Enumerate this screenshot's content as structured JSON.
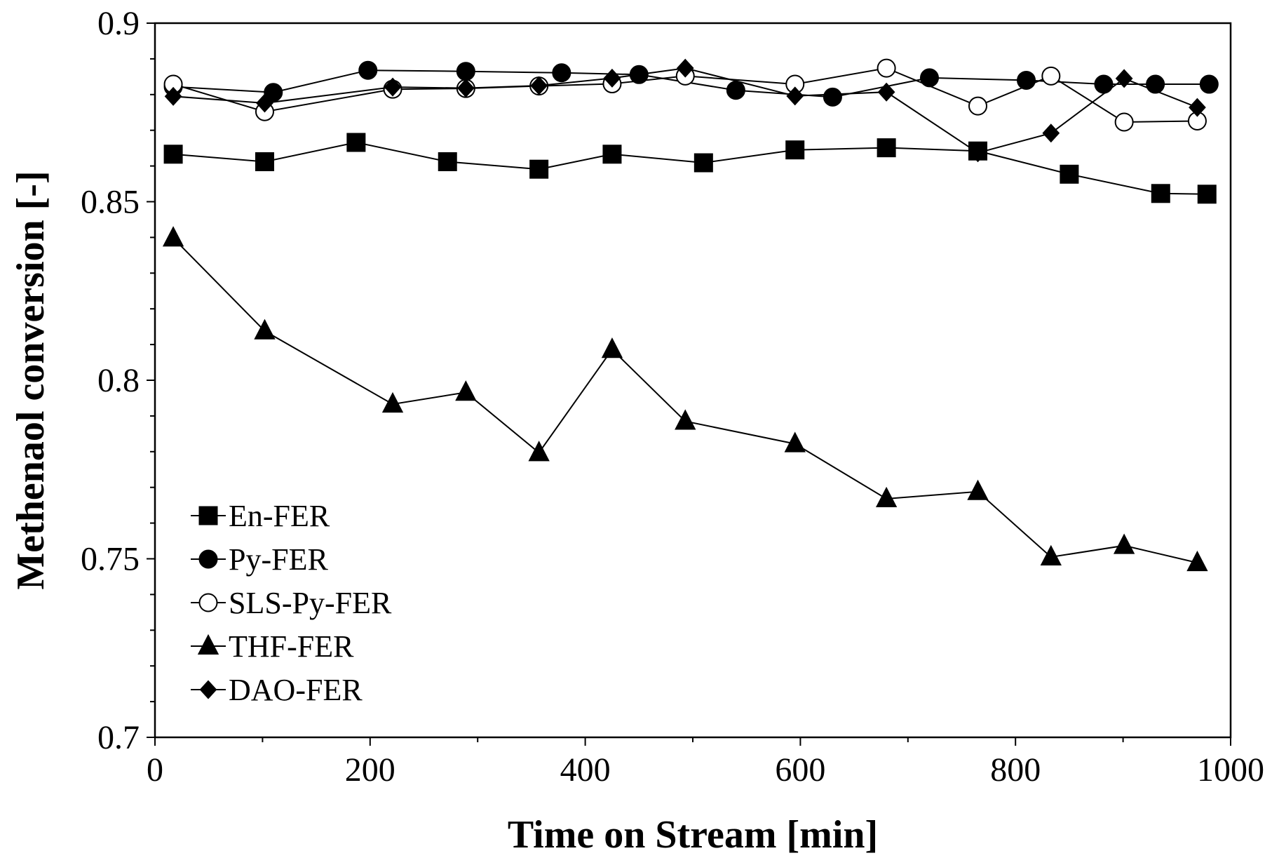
{
  "chart_data": {
    "type": "line",
    "title": "",
    "xlabel": "Time on Stream [min]",
    "ylabel": "Methenaol conversion [-]",
    "xlim": [
      0,
      1000
    ],
    "ylim": [
      0.7,
      0.9
    ],
    "x_ticks": [
      0,
      200,
      400,
      600,
      800,
      1000
    ],
    "x_tick_labels": [
      "0",
      "200",
      "400",
      "600",
      "800",
      "1000"
    ],
    "y_ticks": [
      0.7,
      0.75,
      0.8,
      0.85,
      0.9
    ],
    "y_tick_labels": [
      "0.7",
      "0.75",
      "0.8",
      "0.85",
      "0.9"
    ],
    "grid": false,
    "legend_position": "bottom-left",
    "series": [
      {
        "name": "En-FER",
        "marker": "square",
        "fill": "filled",
        "x": [
          17,
          102,
          187,
          272,
          357,
          425,
          510,
          595,
          680,
          765,
          850,
          935,
          978
        ],
        "y": [
          0.8633,
          0.8612,
          0.8666,
          0.8612,
          0.8591,
          0.8633,
          0.8609,
          0.8645,
          0.8651,
          0.8642,
          0.8577,
          0.8523,
          0.8521
        ]
      },
      {
        "name": "Py-FER",
        "marker": "circle",
        "fill": "filled",
        "x": [
          17,
          110,
          198,
          289,
          378,
          450,
          540,
          630,
          720,
          810,
          882,
          930,
          980
        ],
        "y": [
          0.8822,
          0.8806,
          0.8868,
          0.8865,
          0.8861,
          0.8856,
          0.8812,
          0.8793,
          0.8847,
          0.884,
          0.8829,
          0.8829,
          0.8829
        ]
      },
      {
        "name": "SLS-Py-FER",
        "marker": "circle",
        "fill": "open",
        "x": [
          17,
          102,
          221,
          289,
          357,
          425,
          493,
          595,
          680,
          765,
          833,
          901,
          969
        ],
        "y": [
          0.8829,
          0.8752,
          0.8815,
          0.8817,
          0.8824,
          0.883,
          0.8852,
          0.8829,
          0.8874,
          0.8768,
          0.8852,
          0.8723,
          0.8726
        ]
      },
      {
        "name": "THF-FER",
        "marker": "triangle",
        "fill": "filled",
        "x": [
          17,
          102,
          221,
          289,
          357,
          425,
          493,
          595,
          680,
          765,
          833,
          901,
          969
        ],
        "y": [
          0.8398,
          0.8138,
          0.7933,
          0.7966,
          0.7797,
          0.8086,
          0.7885,
          0.7822,
          0.7668,
          0.7688,
          0.7505,
          0.7537,
          0.7489
        ]
      },
      {
        "name": "DAO-FER",
        "marker": "diamond",
        "fill": "filled",
        "x": [
          17,
          102,
          221,
          289,
          357,
          425,
          493,
          595,
          680,
          765,
          833,
          901,
          969
        ],
        "y": [
          0.8795,
          0.8776,
          0.8821,
          0.8818,
          0.8825,
          0.8846,
          0.8874,
          0.8796,
          0.8807,
          0.8637,
          0.8692,
          0.8845,
          0.8764
        ]
      }
    ]
  }
}
